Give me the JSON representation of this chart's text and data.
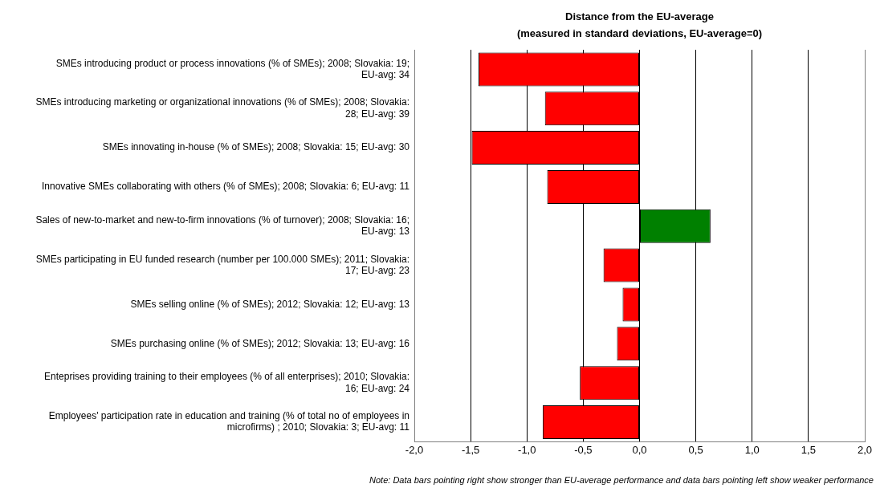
{
  "chart_data": {
    "type": "bar",
    "orientation": "horizontal",
    "title": "Distance from the EU-average",
    "subtitle": "(measured in standard deviations, EU-average=0)",
    "categories": [
      "SMEs introducing product or process innovations (% of SMEs); 2008; Slovakia: 19; EU-avg: 34",
      "SMEs introducing marketing or organizational innovations (% of SMEs); 2008; Slovakia: 28; EU-avg: 39",
      "SMEs innovating in-house (% of SMEs); 2008; Slovakia: 15; EU-avg: 30",
      "Innovative SMEs collaborating with others (% of SMEs); 2008; Slovakia: 6; EU-avg: 11",
      "Sales of new-to-market and new-to-firm innovations (% of turnover); 2008; Slovakia: 16; EU-avg: 13",
      "SMEs participating in EU funded research (number per 100.000 SMEs); 2011; Slovakia: 17; EU-avg: 23",
      "SMEs selling online (% of SMEs); 2012; Slovakia: 12; EU-avg: 13",
      "SMEs purchasing online (% of SMEs); 2012; Slovakia: 13; EU-avg: 16",
      "Enteprises providing training to their employees (% of all enterprises); 2010; Slovakia: 16; EU-avg: 24",
      "Employees' participation rate in education and training (% of total no of employees in microfirms) ; 2010; Slovakia: 3; EU-avg: 11"
    ],
    "values": [
      -1.43,
      -0.84,
      -1.49,
      -0.82,
      0.63,
      -0.32,
      -0.15,
      -0.2,
      -0.53,
      -0.86
    ],
    "colors": [
      "#ff0000",
      "#ff0000",
      "#ff0000",
      "#ff0000",
      "#008000",
      "#ff0000",
      "#ff0000",
      "#ff0000",
      "#ff0000",
      "#ff0000"
    ],
    "xlim": [
      -2,
      2
    ],
    "xticks": [
      {
        "value": -2,
        "label": "-2,0"
      },
      {
        "value": -1.5,
        "label": "-1,5"
      },
      {
        "value": -1,
        "label": "-1,0"
      },
      {
        "value": -0.5,
        "label": "-0,5"
      },
      {
        "value": 0,
        "label": "0,0"
      },
      {
        "value": 0.5,
        "label": "0,5"
      },
      {
        "value": 1,
        "label": "1,0"
      },
      {
        "value": 1.5,
        "label": "1,5"
      },
      {
        "value": 2,
        "label": "2,0"
      }
    ],
    "grid": "x",
    "legend": false,
    "annotations": [
      "Note: Data bars pointing right show stronger than EU-average performance and data bars pointing left show weaker performance"
    ]
  }
}
